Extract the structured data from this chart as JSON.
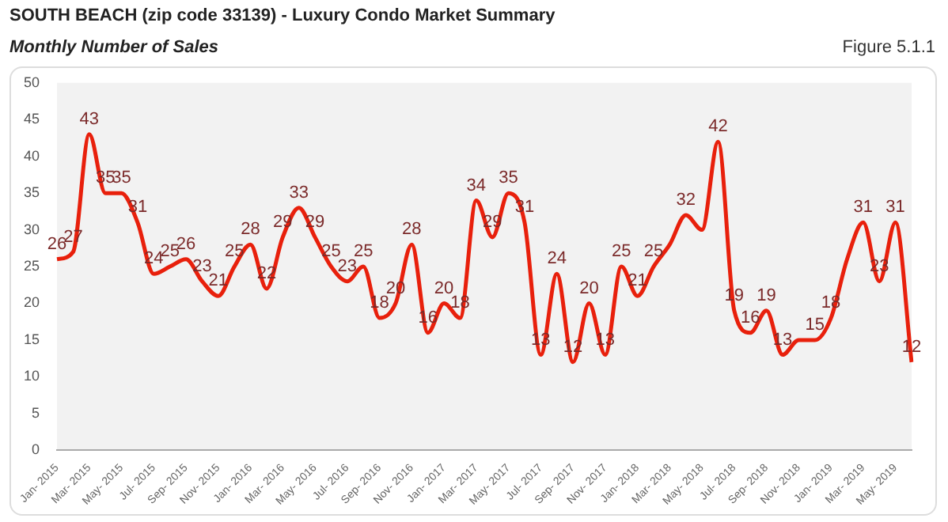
{
  "chart_data": {
    "type": "line",
    "title": "SOUTH BEACH (zip code 33139) - Luxury Condo Market Summary",
    "subtitle": "Monthly Number of Sales",
    "annotations": [
      "Figure 5.1.1"
    ],
    "categories": [
      "Jan- 2015",
      null,
      "Mar- 2015",
      null,
      "May- 2015",
      null,
      "Jul- 2015",
      null,
      "Sep- 2015",
      null,
      "Nov- 2015",
      null,
      "Jan- 2016",
      null,
      "Mar- 2016",
      null,
      "May- 2016",
      null,
      "Jul- 2016",
      null,
      "Sep- 2016",
      null,
      "Nov- 2016",
      null,
      "Jan- 2017",
      null,
      "Mar- 2017",
      null,
      "May- 2017",
      null,
      "Jul- 2017",
      null,
      "Sep- 2017",
      null,
      "Nov- 2017",
      null,
      "Jan- 2018",
      null,
      "Mar- 2018",
      null,
      "May- 2018",
      null,
      "Jul- 2018",
      null,
      "Sep- 2018",
      null,
      "Nov- 2018",
      null,
      "Jan- 2019",
      null,
      "Mar- 2019",
      null,
      "May- 2019",
      null
    ],
    "series": [
      {
        "color": "#e8200c",
        "values": [
          26,
          27,
          43,
          35,
          35,
          31,
          24,
          25,
          26,
          23,
          21,
          25,
          28,
          22,
          29,
          33,
          29,
          25,
          23,
          25,
          18,
          20,
          28,
          16,
          20,
          18,
          34,
          29,
          35,
          31,
          13,
          24,
          12,
          20,
          13,
          25,
          21,
          25,
          28,
          32,
          30,
          42,
          19,
          16,
          19,
          13,
          15,
          15,
          18,
          26,
          31,
          23,
          31,
          12
        ],
        "value_labels": [
          "26",
          "27",
          "43",
          "35",
          "35",
          "31",
          "24",
          "25",
          "26",
          "23",
          "21",
          "25",
          "28",
          "22",
          "29",
          "33",
          "29",
          "25",
          "23",
          "25",
          "18",
          "20",
          "28",
          "16",
          "20",
          "18",
          "34",
          "29",
          "35",
          "31",
          "13",
          "24",
          "12",
          "20",
          "13",
          "25",
          "21",
          "25",
          null,
          "32",
          null,
          "42",
          "19",
          "16",
          "19",
          "13",
          null,
          "15",
          "18",
          null,
          "31",
          "23",
          "31",
          "12"
        ]
      }
    ],
    "ylim": [
      0,
      50
    ],
    "yticks": [
      0,
      5,
      10,
      15,
      20,
      25,
      30,
      35,
      40,
      45,
      50
    ],
    "grid": false,
    "legend": false,
    "marker": "none",
    "line_style": "solid"
  }
}
